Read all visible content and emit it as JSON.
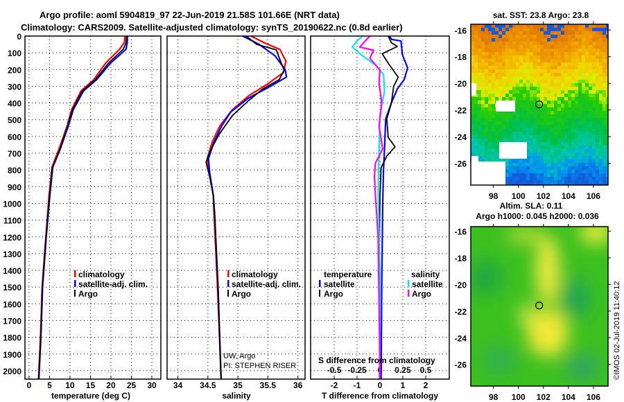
{
  "title": {
    "line1": "Argo profile: aoml 5904819_97 22-Jun-2019 21.58S 101.66E (NRT data)",
    "line2": "Climatology: CARS2009. Satellite-adjusted climatology: synTS_20190622.nc (0.8d earlier)"
  },
  "credit": "©IMOS 02-Jul-2019 11:40:12",
  "pi_text": {
    "line1": "UW, Argo",
    "line2": "PI: STEPHEN RISER"
  },
  "colors": {
    "climatology": "#ff0000",
    "satellite": "#0000ff",
    "argo": "#000000",
    "sal_satellite": "#00e8e8",
    "sal_argo": "#ff00ff"
  },
  "depth_ticks": [
    "0",
    "100",
    "200",
    "300",
    "400",
    "500",
    "600",
    "700",
    "800",
    "900",
    "1000",
    "1100",
    "1200",
    "1300",
    "1400",
    "1500",
    "1600",
    "1700",
    "1800",
    "1900",
    "2000"
  ],
  "chart_data": [
    {
      "type": "line",
      "name": "temperature",
      "xlabel": "temperature (deg C)",
      "ylabel": "depth",
      "xlim": [
        -1,
        32.2
      ],
      "ylim": [
        2050,
        0
      ],
      "xticks": [
        0,
        5,
        10,
        15,
        20,
        25,
        30
      ],
      "xtick_labels": [
        "0",
        "5",
        "10",
        "15",
        "20",
        "25",
        "30"
      ],
      "legend": [
        "climatology",
        "satellite-adj. clim.",
        "Argo"
      ],
      "series": [
        {
          "name": "climatology",
          "depth": [
            0,
            37,
            79,
            162,
            261,
            328,
            440,
            537,
            676,
            784,
            950,
            1200,
            1500,
            1800,
            2050
          ],
          "values": [
            23.4,
            23.3,
            22.1,
            18.7,
            15.8,
            12.7,
            10.4,
            9.3,
            7.3,
            5.6,
            4.9,
            4.1,
            3.2,
            2.8,
            2.3
          ]
        },
        {
          "name": "satellite-adj. clim.",
          "depth": [
            0,
            37,
            79,
            162,
            261,
            328,
            440,
            537,
            676,
            784,
            950,
            1200,
            1500,
            1800,
            2050
          ],
          "values": [
            24.0,
            24.0,
            23.7,
            19.9,
            16.5,
            13.3,
            10.8,
            9.6,
            7.6,
            5.8,
            5.1,
            4.2,
            3.3,
            2.9,
            2.4
          ]
        },
        {
          "name": "Argo",
          "depth": [
            0,
            40,
            79,
            162,
            261,
            328,
            440,
            537,
            650,
            700,
            784,
            950,
            1200,
            1500,
            1800,
            2050
          ],
          "values": [
            23.8,
            23.7,
            23.0,
            19.4,
            16.2,
            13.0,
            10.6,
            9.4,
            7.9,
            7.2,
            5.7,
            5.0,
            4.15,
            3.25,
            2.85,
            2.35
          ]
        }
      ]
    },
    {
      "type": "line",
      "name": "salinity",
      "xlabel": "salinity",
      "ylabel": "depth",
      "xlim": [
        33.82,
        36.12
      ],
      "ylim": [
        2050,
        0
      ],
      "xticks": [
        34,
        34.5,
        35,
        35.5,
        36
      ],
      "xtick_labels": [
        "34",
        "34.5",
        "35",
        "35.5",
        "36"
      ],
      "legend": [
        "climatology",
        "satellite-adj. clim.",
        "Argo"
      ],
      "series": [
        {
          "name": "climatology",
          "depth": [
            0,
            42,
            80,
            149,
            218,
            288,
            357,
            440,
            537,
            635,
            732,
            800,
            950,
            1050,
            1500,
            2050
          ],
          "values": [
            35.22,
            35.45,
            35.7,
            35.8,
            35.76,
            35.49,
            35.18,
            34.91,
            34.7,
            34.57,
            34.49,
            34.51,
            34.59,
            34.6,
            34.66,
            34.72
          ]
        },
        {
          "name": "satellite-adj. clim.",
          "depth": [
            0,
            49,
            118,
            201,
            245,
            301,
            370,
            454,
            537,
            635,
            732,
            815,
            950,
            1050,
            1500,
            2050
          ],
          "values": [
            35.08,
            35.35,
            35.62,
            35.79,
            35.81,
            35.54,
            35.18,
            34.88,
            34.73,
            34.6,
            34.51,
            34.53,
            34.59,
            34.61,
            34.67,
            34.72
          ]
        },
        {
          "name": "Argo",
          "depth": [
            0,
            49,
            83,
            149,
            204,
            260,
            315,
            385,
            475,
            585,
            665,
            710,
            755,
            840,
            950,
            1050,
            1500,
            2050
          ],
          "values": [
            35.14,
            35.31,
            35.64,
            35.71,
            35.77,
            35.69,
            35.42,
            35.18,
            34.91,
            34.69,
            34.57,
            34.51,
            34.47,
            34.53,
            34.59,
            34.61,
            34.67,
            34.72
          ]
        }
      ]
    },
    {
      "type": "line",
      "name": "difference",
      "xlabel": "T difference from climatology",
      "x2label": "S difference from climatology",
      "ylabel": "depth",
      "xlim": [
        -3.03,
        3.03
      ],
      "ylim": [
        2050,
        0
      ],
      "xticks": [
        -2,
        -1,
        0,
        1,
        2
      ],
      "xtick_labels": [
        "-2",
        "-1",
        "0",
        "1",
        "2"
      ],
      "s_xlim": [
        -0.758,
        0.758
      ],
      "s_xticks": [
        -0.5,
        -0.25,
        0,
        0.25,
        0.5
      ],
      "s_xtick_labels": [
        "-0.5",
        "-0.25",
        "0",
        "0.25",
        "0.5"
      ],
      "legend_temperature": {
        "title": "temperature",
        "items": [
          "satellite",
          "Argo"
        ]
      },
      "legend_salinity": {
        "title": "salinity",
        "items": [
          "satellite",
          "Argo"
        ]
      },
      "series": [
        {
          "name": "T satellite",
          "axis": "T",
          "depth": [
            0,
            20,
            30,
            110,
            190,
            260,
            315,
            400,
            495,
            675,
            815,
            1000,
            1500,
            2050
          ],
          "values": [
            0.41,
            0.51,
            0.92,
            0.98,
            1.21,
            1.06,
            0.76,
            0.5,
            0.25,
            0.2,
            0.15,
            0.12,
            0.08,
            0.05
          ]
        },
        {
          "name": "T Argo",
          "axis": "T",
          "depth": [
            0,
            40,
            62,
            106,
            162,
            246,
            300,
            400,
            495,
            606,
            662,
            717,
            787,
            950,
            1300,
            1700,
            2050
          ],
          "values": [
            0.36,
            0.5,
            0.76,
            0.1,
            0.36,
            0.8,
            0.6,
            0.5,
            0.3,
            0.36,
            0.66,
            0.3,
            0.05,
            0.0,
            -0.03,
            0.0,
            -0.02
          ]
        },
        {
          "name": "S satellite",
          "axis": "S",
          "depth": [
            0,
            35,
            66,
            118,
            177,
            232,
            330,
            468,
            675,
            950,
            1400,
            2050
          ],
          "values": [
            -0.19,
            -0.26,
            -0.3,
            -0.19,
            -0.04,
            0.04,
            0.05,
            0.0,
            -0.01,
            -0.02,
            0.0,
            0.0
          ]
        },
        {
          "name": "S Argo",
          "axis": "S",
          "depth": [
            0,
            35,
            66,
            85,
            132,
            204,
            280,
            400,
            537,
            675,
            760,
            840,
            950,
            1200,
            1600,
            2050
          ],
          "values": [
            -0.11,
            -0.17,
            -0.22,
            -0.07,
            -0.11,
            -0.0,
            -0.01,
            0.02,
            -0.01,
            0.03,
            -0.05,
            -0.06,
            -0.05,
            -0.02,
            -0.01,
            0.0
          ]
        }
      ]
    },
    {
      "type": "heatmap",
      "name": "sst-map",
      "title": "sat. SST: 23.8 Argo: 23.8",
      "xlim": [
        96.19,
        107.17
      ],
      "ylim": [
        -27.63,
        -15.57
      ],
      "xticks": [
        98,
        100,
        102,
        104,
        106
      ],
      "xtick_labels": [
        "98",
        "100",
        "102",
        "104",
        "106"
      ],
      "yticks": [
        -16,
        -18,
        -20,
        -22,
        -24,
        -26
      ],
      "ytick_labels": [
        "-16",
        "-18",
        "-20",
        "-22",
        "-24",
        "-26"
      ],
      "marker": {
        "lon": 101.66,
        "lat": -21.58
      }
    },
    {
      "type": "heatmap",
      "name": "sla-map",
      "title": "Altim. SLA: 0.11",
      "subtitle": "Argo h1000: 0.045 h2000: 0.036",
      "xlim": [
        96.19,
        107.17
      ],
      "ylim": [
        -27.63,
        -15.66
      ],
      "xticks": [
        98,
        100,
        102,
        104,
        106
      ],
      "xtick_labels": [
        "98",
        "100",
        "102",
        "104",
        "106"
      ],
      "yticks": [
        -16,
        -18,
        -20,
        -22,
        -24,
        -26
      ],
      "ytick_labels": [
        "-16",
        "-18",
        "-20",
        "-22",
        "-24",
        "-26"
      ],
      "marker": {
        "lon": 101.66,
        "lat": -21.58
      }
    }
  ]
}
